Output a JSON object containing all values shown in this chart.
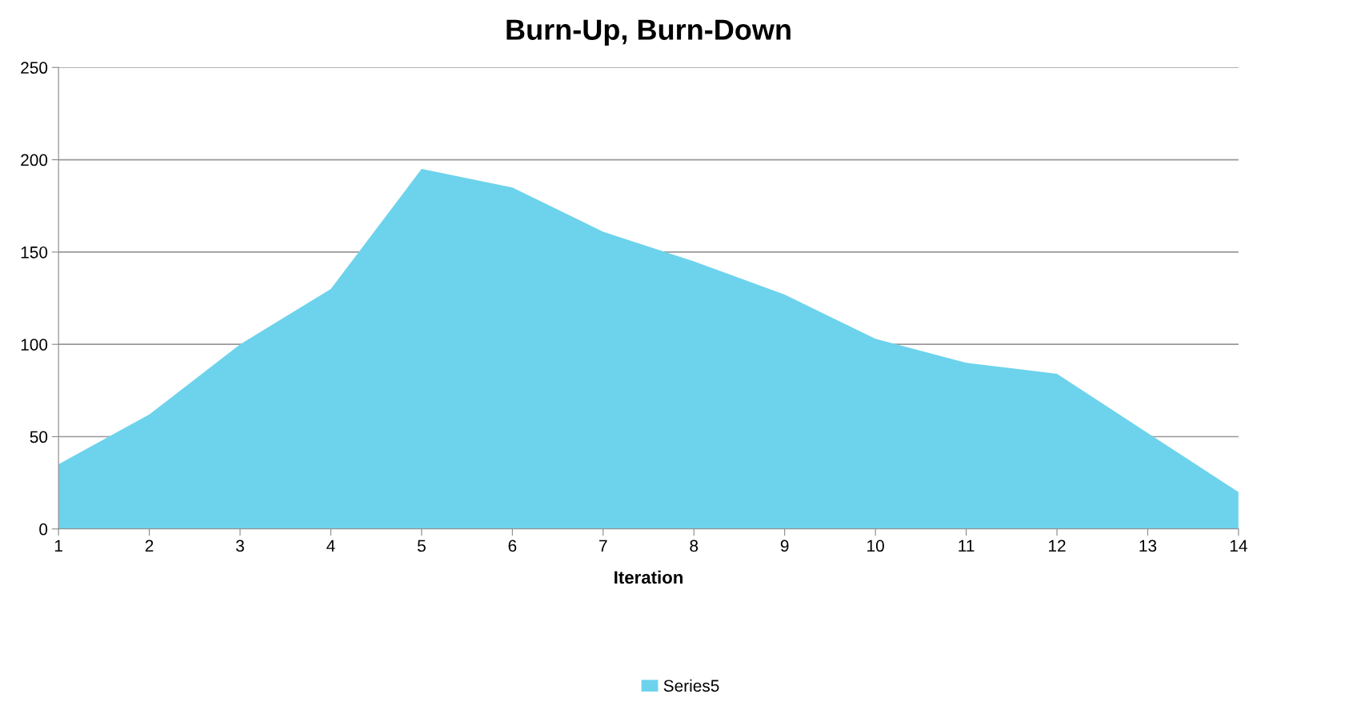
{
  "chart_data": {
    "type": "area",
    "title": "Burn-Up, Burn-Down",
    "xlabel": "Iteration",
    "x": [
      1,
      2,
      3,
      4,
      5,
      6,
      7,
      8,
      9,
      10,
      11,
      12,
      13,
      14
    ],
    "series": [
      {
        "name": "Series5",
        "color": "#6dd3ec",
        "values": [
          35,
          62,
          100,
          130,
          195,
          185,
          161,
          145,
          127,
          103,
          90,
          84,
          52,
          20
        ]
      }
    ],
    "xlim": [
      1,
      14
    ],
    "xticks": [
      1,
      2,
      3,
      4,
      5,
      6,
      7,
      8,
      9,
      10,
      11,
      12,
      13,
      14
    ],
    "ylim": [
      0,
      250
    ],
    "yticks": [
      0,
      50,
      100,
      150,
      200,
      250
    ],
    "grid": "y",
    "legend": "bottom"
  }
}
